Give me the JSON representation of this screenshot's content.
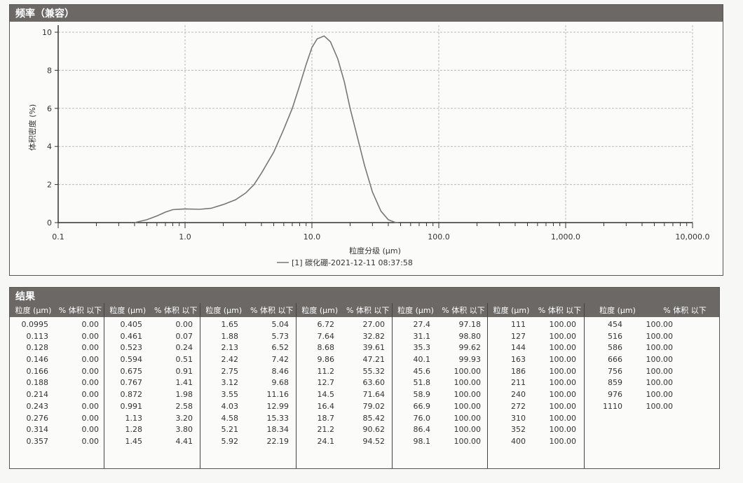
{
  "chart_panel": {
    "title": "频率（兼容）"
  },
  "chart_data": {
    "type": "line",
    "xscale": "log",
    "xlim": [
      0.1,
      10000
    ],
    "ylim": [
      0,
      10
    ],
    "xlabel": "粒度分级 (μm)",
    "ylabel": "体积密度 (%)",
    "xticks": [
      "0.1",
      "1.0",
      "10.0",
      "100.0",
      "1,000.0",
      "10,000.0"
    ],
    "yticks": [
      "0",
      "2",
      "4",
      "6",
      "8",
      "10"
    ],
    "grid": true,
    "legend": "bottom-center",
    "series": [
      {
        "name": "[1] 碳化硼-2021-12-11 08:37:58",
        "color": "#777777",
        "x": [
          0.4,
          0.5,
          0.6,
          0.7,
          0.8,
          1.0,
          1.3,
          1.6,
          2,
          2.5,
          3,
          3.5,
          4,
          5,
          6,
          7,
          8,
          9,
          10,
          11,
          12.5,
          14,
          16,
          18,
          20,
          23,
          26,
          30,
          35,
          40,
          45,
          48
        ],
        "y": [
          0,
          0.15,
          0.35,
          0.55,
          0.68,
          0.72,
          0.7,
          0.75,
          0.95,
          1.2,
          1.55,
          2.0,
          2.6,
          3.7,
          4.9,
          6.0,
          7.2,
          8.3,
          9.2,
          9.65,
          9.8,
          9.5,
          8.6,
          7.4,
          6.0,
          4.4,
          3.0,
          1.6,
          0.6,
          0.15,
          0.02,
          0
        ]
      }
    ]
  },
  "results": {
    "title": "结果",
    "col_size": "粒度 (μm)",
    "col_pct": "% 体积 以下",
    "groups": [
      [
        [
          "0.0995",
          "0.00"
        ],
        [
          "0.113",
          "0.00"
        ],
        [
          "0.128",
          "0.00"
        ],
        [
          "0.146",
          "0.00"
        ],
        [
          "0.166",
          "0.00"
        ],
        [
          "0.188",
          "0.00"
        ],
        [
          "0.214",
          "0.00"
        ],
        [
          "0.243",
          "0.00"
        ],
        [
          "0.276",
          "0.00"
        ],
        [
          "0.314",
          "0.00"
        ],
        [
          "0.357",
          "0.00"
        ]
      ],
      [
        [
          "0.405",
          "0.00"
        ],
        [
          "0.461",
          "0.07"
        ],
        [
          "0.523",
          "0.24"
        ],
        [
          "0.594",
          "0.51"
        ],
        [
          "0.675",
          "0.91"
        ],
        [
          "0.767",
          "1.41"
        ],
        [
          "0.872",
          "1.98"
        ],
        [
          "0.991",
          "2.58"
        ],
        [
          "1.13",
          "3.20"
        ],
        [
          "1.28",
          "3.80"
        ],
        [
          "1.45",
          "4.41"
        ]
      ],
      [
        [
          "1.65",
          "5.04"
        ],
        [
          "1.88",
          "5.73"
        ],
        [
          "2.13",
          "6.52"
        ],
        [
          "2.42",
          "7.42"
        ],
        [
          "2.75",
          "8.46"
        ],
        [
          "3.12",
          "9.68"
        ],
        [
          "3.55",
          "11.16"
        ],
        [
          "4.03",
          "12.99"
        ],
        [
          "4.58",
          "15.33"
        ],
        [
          "5.21",
          "18.34"
        ],
        [
          "5.92",
          "22.19"
        ]
      ],
      [
        [
          "6.72",
          "27.00"
        ],
        [
          "7.64",
          "32.82"
        ],
        [
          "8.68",
          "39.61"
        ],
        [
          "9.86",
          "47.21"
        ],
        [
          "11.2",
          "55.32"
        ],
        [
          "12.7",
          "63.60"
        ],
        [
          "14.5",
          "71.64"
        ],
        [
          "16.4",
          "79.02"
        ],
        [
          "18.7",
          "85.42"
        ],
        [
          "21.2",
          "90.62"
        ],
        [
          "24.1",
          "94.52"
        ]
      ],
      [
        [
          "27.4",
          "97.18"
        ],
        [
          "31.1",
          "98.80"
        ],
        [
          "35.3",
          "99.62"
        ],
        [
          "40.1",
          "99.93"
        ],
        [
          "45.6",
          "100.00"
        ],
        [
          "51.8",
          "100.00"
        ],
        [
          "58.9",
          "100.00"
        ],
        [
          "66.9",
          "100.00"
        ],
        [
          "76.0",
          "100.00"
        ],
        [
          "86.4",
          "100.00"
        ],
        [
          "98.1",
          "100.00"
        ]
      ],
      [
        [
          "111",
          "100.00"
        ],
        [
          "127",
          "100.00"
        ],
        [
          "144",
          "100.00"
        ],
        [
          "163",
          "100.00"
        ],
        [
          "186",
          "100.00"
        ],
        [
          "211",
          "100.00"
        ],
        [
          "240",
          "100.00"
        ],
        [
          "272",
          "100.00"
        ],
        [
          "310",
          "100.00"
        ],
        [
          "352",
          "100.00"
        ],
        [
          "400",
          "100.00"
        ]
      ],
      [
        [
          "454",
          "100.00"
        ],
        [
          "516",
          "100.00"
        ],
        [
          "586",
          "100.00"
        ],
        [
          "666",
          "100.00"
        ],
        [
          "756",
          "100.00"
        ],
        [
          "859",
          "100.00"
        ],
        [
          "976",
          "100.00"
        ],
        [
          "1110",
          "100.00"
        ]
      ]
    ]
  }
}
